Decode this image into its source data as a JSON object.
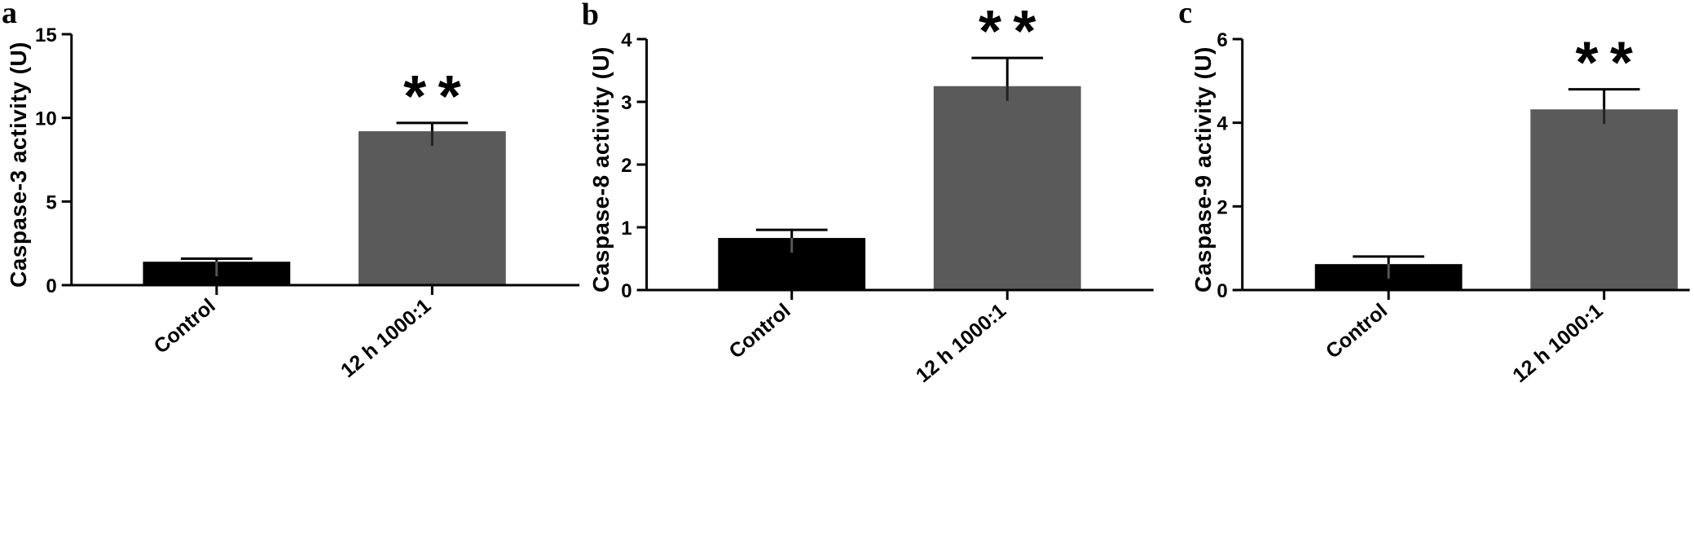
{
  "chart_data": [
    {
      "type": "bar",
      "panel": "a",
      "categories": [
        "Control",
        "12 h 1000:1"
      ],
      "values": [
        1.4,
        9.2
      ],
      "errors": [
        0.18,
        0.5
      ],
      "annotations": [
        "",
        "**"
      ],
      "ylabel": "Caspase-3 activity (U)",
      "ylim": [
        0,
        15
      ],
      "yticks": [
        0,
        5,
        10,
        15
      ],
      "colors": [
        "#000000",
        "#5a5a5a"
      ]
    },
    {
      "type": "bar",
      "panel": "b",
      "categories": [
        "Control",
        "12 h 1000:1"
      ],
      "values": [
        0.83,
        3.25
      ],
      "errors": [
        0.13,
        0.45
      ],
      "annotations": [
        "",
        "**"
      ],
      "ylabel": "Caspase-8 activity (U)",
      "ylim": [
        0,
        4
      ],
      "yticks": [
        0,
        1,
        2,
        3,
        4
      ],
      "colors": [
        "#000000",
        "#5a5a5a"
      ]
    },
    {
      "type": "bar",
      "panel": "c",
      "categories": [
        "Control",
        "12 h 1000:1"
      ],
      "values": [
        0.62,
        4.32
      ],
      "errors": [
        0.18,
        0.48
      ],
      "annotations": [
        "",
        "**"
      ],
      "ylabel": "Caspase-9 activity (U)",
      "ylim": [
        0,
        6
      ],
      "yticks": [
        0,
        2,
        4,
        6
      ],
      "colors": [
        "#000000",
        "#5a5a5a"
      ]
    }
  ]
}
